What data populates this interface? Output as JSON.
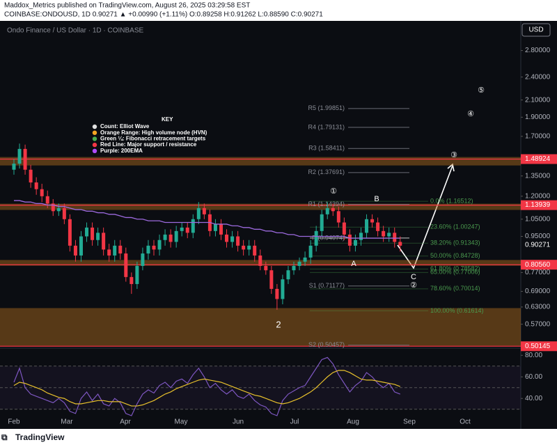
{
  "header": {
    "line1": "Maddox_Metrics published on TradingView.com, August 26, 2025 03:29:58 EST",
    "line2": "COINBASE:ONDOUSD, 1D 0.90271 ▲ +0.00990 (+1.11%) O:0.89258 H:0.91262 L:0.88590 C:0.90271"
  },
  "footer": "TradingView",
  "chart_data": {
    "type": "candlestick",
    "title": "Ondo Finance / US Dollar · 1D · COINBASE",
    "currency": "USD",
    "log_scale": true,
    "grid": false,
    "up_color": "#22ab94",
    "down_color": "#f23645",
    "ema_color": "#9c6ade",
    "ylim": [
      0.5,
      3.3
    ],
    "yticks": [
      {
        "value": 2.8,
        "label": "2.80000"
      },
      {
        "value": 2.4,
        "label": "2.40000"
      },
      {
        "value": 2.1,
        "label": "2.10000"
      },
      {
        "value": 1.9,
        "label": "1.90000"
      },
      {
        "value": 1.7,
        "label": "1.70000"
      },
      {
        "value": 1.35,
        "label": "1.35000"
      },
      {
        "value": 1.2,
        "label": "1.20000"
      },
      {
        "value": 1.05,
        "label": "1.05000"
      },
      {
        "value": 0.95,
        "label": "0.95000"
      },
      {
        "value": 0.77,
        "label": "0.77000"
      },
      {
        "value": 0.69,
        "label": "0.69000"
      },
      {
        "value": 0.63,
        "label": "0.63000"
      },
      {
        "value": 0.57,
        "label": "0.57000"
      }
    ],
    "last_price": 0.90271,
    "categories": [
      "Feb",
      "Mar",
      "Apr",
      "May",
      "Jun",
      "Jul",
      "Aug",
      "Sep",
      "Oct"
    ],
    "ohlc": [
      [
        1.4,
        1.49,
        1.36,
        1.45
      ],
      [
        1.45,
        1.63,
        1.41,
        1.58
      ],
      [
        1.58,
        1.62,
        1.36,
        1.4
      ],
      [
        1.4,
        1.44,
        1.26,
        1.3
      ],
      [
        1.3,
        1.34,
        1.21,
        1.25
      ],
      [
        1.25,
        1.29,
        1.16,
        1.2
      ],
      [
        1.2,
        1.24,
        1.12,
        1.15
      ],
      [
        1.15,
        1.18,
        1.07,
        1.1
      ],
      [
        1.1,
        1.15,
        1.07,
        1.12
      ],
      [
        1.12,
        1.15,
        1.02,
        1.05
      ],
      [
        1.05,
        1.08,
        0.87,
        0.9
      ],
      [
        0.9,
        0.93,
        0.82,
        0.85
      ],
      [
        0.85,
        0.98,
        0.82,
        0.95
      ],
      [
        0.95,
        1.03,
        0.92,
        1.0
      ],
      [
        1.0,
        1.03,
        0.9,
        0.93
      ],
      [
        0.93,
        1.0,
        0.9,
        0.97
      ],
      [
        0.97,
        1.0,
        0.85,
        0.88
      ],
      [
        0.88,
        0.91,
        0.82,
        0.85
      ],
      [
        0.85,
        0.93,
        0.82,
        0.9
      ],
      [
        0.9,
        0.93,
        0.83,
        0.86
      ],
      [
        0.86,
        0.89,
        0.73,
        0.75
      ],
      [
        0.75,
        0.77,
        0.68,
        0.72
      ],
      [
        0.72,
        0.82,
        0.7,
        0.8
      ],
      [
        0.8,
        0.89,
        0.78,
        0.86
      ],
      [
        0.86,
        0.93,
        0.83,
        0.9
      ],
      [
        0.9,
        0.93,
        0.85,
        0.88
      ],
      [
        0.88,
        0.96,
        0.85,
        0.93
      ],
      [
        0.93,
        0.99,
        0.9,
        0.96
      ],
      [
        0.96,
        0.99,
        0.89,
        0.92
      ],
      [
        0.92,
        1.01,
        0.89,
        0.98
      ],
      [
        0.98,
        1.03,
        0.95,
        1.0
      ],
      [
        1.0,
        1.03,
        0.94,
        0.97
      ],
      [
        0.97,
        1.08,
        0.94,
        1.05
      ],
      [
        1.05,
        1.16,
        1.02,
        1.12
      ],
      [
        1.12,
        1.15,
        1.05,
        1.08
      ],
      [
        1.08,
        1.11,
        0.95,
        0.98
      ],
      [
        0.98,
        1.05,
        0.95,
        1.02
      ],
      [
        1.02,
        1.05,
        0.93,
        0.96
      ],
      [
        0.96,
        0.99,
        0.89,
        0.92
      ],
      [
        0.92,
        0.98,
        0.89,
        0.95
      ],
      [
        0.95,
        0.98,
        0.87,
        0.9
      ],
      [
        0.9,
        0.93,
        0.85,
        0.88
      ],
      [
        0.88,
        0.93,
        0.85,
        0.9
      ],
      [
        0.9,
        0.93,
        0.82,
        0.85
      ],
      [
        0.85,
        0.88,
        0.78,
        0.8
      ],
      [
        0.8,
        0.82,
        0.76,
        0.78
      ],
      [
        0.78,
        0.8,
        0.68,
        0.7
      ],
      [
        0.7,
        0.72,
        0.62,
        0.66
      ],
      [
        0.66,
        0.76,
        0.64,
        0.74
      ],
      [
        0.74,
        0.8,
        0.72,
        0.78
      ],
      [
        0.78,
        0.82,
        0.76,
        0.8
      ],
      [
        0.8,
        0.84,
        0.78,
        0.82
      ],
      [
        0.82,
        0.87,
        0.8,
        0.84
      ],
      [
        0.84,
        0.93,
        0.81,
        0.9
      ],
      [
        0.9,
        1.01,
        0.87,
        0.98
      ],
      [
        0.98,
        1.11,
        0.95,
        1.08
      ],
      [
        1.08,
        1.16,
        1.05,
        1.12
      ],
      [
        1.12,
        1.15,
        1.07,
        1.1
      ],
      [
        1.1,
        1.13,
        1.0,
        1.03
      ],
      [
        1.03,
        1.06,
        0.93,
        0.96
      ],
      [
        0.96,
        0.99,
        0.87,
        0.9
      ],
      [
        0.9,
        0.96,
        0.87,
        0.93
      ],
      [
        0.93,
        1.0,
        0.9,
        0.97
      ],
      [
        0.97,
        1.08,
        0.94,
        1.05
      ],
      [
        1.05,
        1.08,
        1.0,
        1.03
      ],
      [
        1.03,
        1.06,
        0.95,
        0.98
      ],
      [
        0.98,
        1.01,
        0.92,
        0.95
      ],
      [
        0.95,
        1.0,
        0.92,
        0.97
      ],
      [
        0.97,
        1.0,
        0.89,
        0.92
      ],
      [
        0.92,
        0.95,
        0.87,
        0.9
      ]
    ],
    "ema": [
      1.17,
      1.17,
      1.16,
      1.16,
      1.15,
      1.15,
      1.14,
      1.14,
      1.13,
      1.13,
      1.12,
      1.11,
      1.11,
      1.1,
      1.1,
      1.09,
      1.09,
      1.08,
      1.08,
      1.07,
      1.06,
      1.06,
      1.05,
      1.05,
      1.04,
      1.04,
      1.04,
      1.03,
      1.03,
      1.03,
      1.03,
      1.03,
      1.03,
      1.03,
      1.03,
      1.03,
      1.02,
      1.02,
      1.02,
      1.01,
      1.01,
      1.0,
      1.0,
      0.99,
      0.99,
      0.98,
      0.98,
      0.97,
      0.97,
      0.96,
      0.96,
      0.95,
      0.95,
      0.95,
      0.95,
      0.95,
      0.95,
      0.95,
      0.95,
      0.95,
      0.94,
      0.94,
      0.94,
      0.94,
      0.94,
      0.94,
      0.94,
      0.94,
      0.94,
      0.94
    ],
    "zones": [
      {
        "top": 1.507,
        "bottom": 1.435
      },
      {
        "top": 1.149,
        "bottom": 1.108
      },
      {
        "top": 0.828,
        "bottom": 0.801
      },
      {
        "top": 0.626,
        "bottom": 0.503
      }
    ],
    "red_levels": [
      1.48924,
      1.13939,
      {
        "value": 0.8056,
        "label": "0.80560"
      },
      0.50145
    ],
    "pivots": [
      {
        "value": 1.99851,
        "label": "R5 (1.99851)"
      },
      {
        "value": 1.79131,
        "label": "R4 (1.79131)"
      },
      {
        "value": 1.58411,
        "label": "R3 (1.58411)"
      },
      {
        "value": 1.37691,
        "label": "R2 (1.37691)"
      },
      {
        "value": 1.14394,
        "label": "R1 (1.14394)"
      },
      {
        "value": 0.94074,
        "label": "P (0.94074)"
      },
      {
        "value": 0.71177,
        "label": "S1 (0.71177)"
      },
      {
        "value": 0.50457,
        "label": "S2 (0.50457)"
      }
    ],
    "fib": [
      {
        "value": 1.16512,
        "label": "0.0% (1.16512)"
      },
      {
        "value": 1.00247,
        "label": "23.60% (1.00247)"
      },
      {
        "value": 0.91343,
        "label": "38.20% (0.91343)"
      },
      {
        "value": 0.84728,
        "label": "50.00% (0.84728)"
      },
      {
        "value": 0.78582,
        "label": "61.80% (0.78582)"
      },
      {
        "value": 0.77006,
        "label": "65.00% (0.77006)"
      },
      {
        "value": 0.70014,
        "label": "78.60% (0.70014)"
      },
      {
        "value": 0.61614,
        "label": "100.00% (0.61614)"
      }
    ],
    "wave_labels": [
      "①",
      "B",
      "A",
      "C",
      "②",
      "③",
      "④",
      "⑤",
      "2"
    ],
    "key": {
      "title": "KEY",
      "items": [
        "Count: Elliot Wave",
        "Orange Range: High volume node (HVN)",
        "Green ¼: Fibonacci retracement targets",
        "Red Line: Major support / resistance",
        "Purple: 200EMA"
      ],
      "colors": [
        "#e0e0e0",
        "#f5a623",
        "#4caf50",
        "#f23645",
        "#b14cff"
      ]
    },
    "rsi": {
      "values": [
        55,
        68,
        50,
        44,
        42,
        40,
        38,
        36,
        40,
        36,
        28,
        26,
        40,
        46,
        38,
        44,
        35,
        33,
        40,
        36,
        26,
        24,
        35,
        44,
        48,
        45,
        52,
        55,
        50,
        56,
        58,
        54,
        62,
        68,
        60,
        50,
        54,
        48,
        44,
        48,
        42,
        40,
        44,
        38,
        34,
        32,
        26,
        24,
        38,
        44,
        47,
        50,
        52,
        60,
        68,
        76,
        78,
        72,
        62,
        54,
        46,
        52,
        56,
        64,
        60,
        54,
        50,
        54,
        46,
        44
      ],
      "ma": [
        52,
        55,
        54,
        52,
        50,
        48,
        45,
        43,
        41,
        40,
        37,
        35,
        35,
        36,
        37,
        38,
        38,
        37,
        37,
        37,
        35,
        33,
        33,
        34,
        36,
        38,
        41,
        44,
        46,
        49,
        51,
        53,
        55,
        57,
        58,
        57,
        56,
        55,
        53,
        51,
        49,
        47,
        45,
        43,
        42,
        40,
        38,
        36,
        35,
        36,
        38,
        40,
        43,
        46,
        50,
        55,
        60,
        64,
        66,
        66,
        64,
        61,
        58,
        57,
        57,
        56,
        55,
        54,
        53,
        51
      ],
      "color": "#7e57c2",
      "ma_color": "#e8c12c",
      "ylim": [
        24,
        86
      ],
      "bands": [
        70,
        50,
        30
      ],
      "yticks": [
        {
          "value": 80,
          "label": "80.00"
        },
        {
          "value": 60,
          "label": "60.00"
        },
        {
          "value": 40,
          "label": "40.00"
        }
      ]
    }
  }
}
